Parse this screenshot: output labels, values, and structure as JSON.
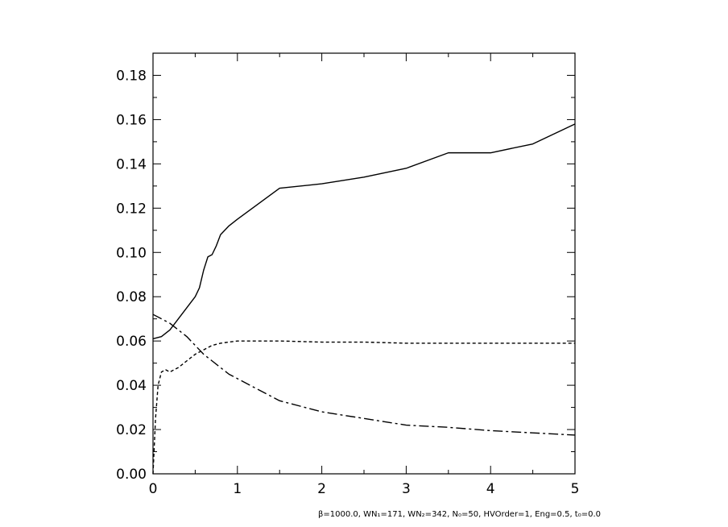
{
  "chart_data": {
    "type": "line",
    "title": "",
    "xlabel": "",
    "ylabel": "",
    "xlim": [
      0,
      5
    ],
    "ylim": [
      0,
      0.19
    ],
    "grid": false,
    "legend": "none",
    "x_ticks": [
      "0",
      "1",
      "2",
      "3",
      "4",
      "5"
    ],
    "y_ticks": [
      "0.00",
      "0.02",
      "0.04",
      "0.06",
      "0.08",
      "0.10",
      "0.12",
      "0.14",
      "0.16",
      "0.18"
    ],
    "series": [
      {
        "style": "solid",
        "color": "#000000",
        "x": [
          0,
          0.1,
          0.2,
          0.3,
          0.4,
          0.5,
          0.55,
          0.6,
          0.65,
          0.7,
          0.75,
          0.8,
          0.9,
          1.0,
          1.25,
          1.5,
          2.0,
          2.5,
          3.0,
          3.5,
          4.0,
          4.5,
          5.0
        ],
        "y": [
          0.061,
          0.062,
          0.065,
          0.07,
          0.075,
          0.08,
          0.084,
          0.092,
          0.098,
          0.099,
          0.103,
          0.108,
          0.112,
          0.115,
          0.122,
          0.129,
          0.131,
          0.134,
          0.138,
          0.145,
          0.145,
          0.149,
          0.158
        ]
      },
      {
        "style": "dashed",
        "color": "#000000",
        "x": [
          0,
          0.03,
          0.06,
          0.1,
          0.15,
          0.2,
          0.3,
          0.4,
          0.5,
          0.6,
          0.7,
          0.8,
          0.9,
          1.0,
          1.5,
          2.0,
          2.5,
          3.0,
          3.5,
          4.0,
          4.5,
          5.0
        ],
        "y": [
          0.0,
          0.025,
          0.04,
          0.046,
          0.047,
          0.046,
          0.048,
          0.051,
          0.054,
          0.056,
          0.058,
          0.059,
          0.0595,
          0.06,
          0.06,
          0.0595,
          0.0595,
          0.059,
          0.059,
          0.059,
          0.059,
          0.059
        ]
      },
      {
        "style": "dash-dot",
        "color": "#000000",
        "x": [
          0,
          0.1,
          0.2,
          0.3,
          0.4,
          0.5,
          0.6,
          0.7,
          0.8,
          0.9,
          1.0,
          1.25,
          1.5,
          2.0,
          2.5,
          3.0,
          3.5,
          4.0,
          4.5,
          5.0
        ],
        "y": [
          0.072,
          0.07,
          0.068,
          0.065,
          0.062,
          0.058,
          0.054,
          0.051,
          0.048,
          0.045,
          0.043,
          0.038,
          0.033,
          0.028,
          0.025,
          0.022,
          0.021,
          0.0195,
          0.0185,
          0.0175
        ]
      }
    ]
  },
  "footer": {
    "text": "β=1000.0, WN₁=171, WN₂=342, N₀=50, HVOrder=1, Eng=0.5, t₀=0.0"
  }
}
